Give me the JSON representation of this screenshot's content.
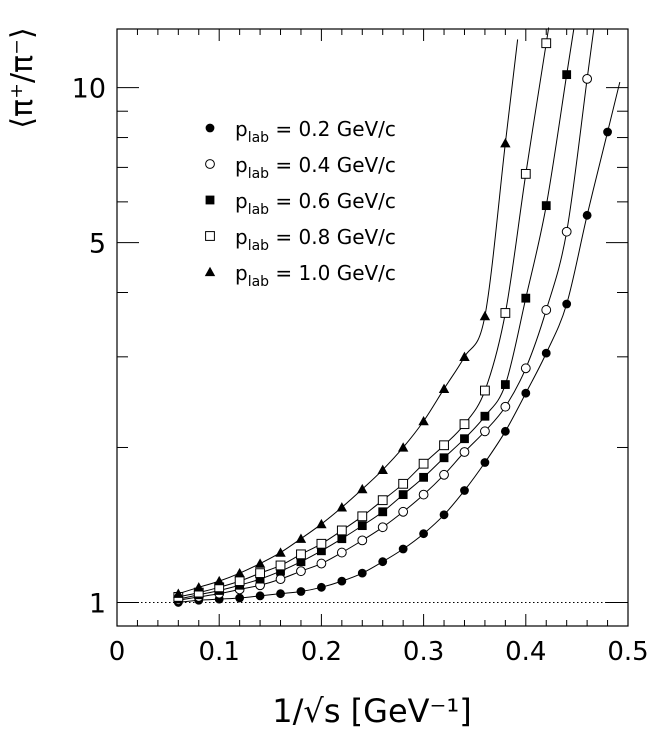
{
  "chart_data": {
    "type": "scatter",
    "title": "",
    "xlabel": "1/√s [GeV⁻¹]",
    "ylabel": "⟨π⁺/π⁻⟩",
    "xlim": [
      0,
      0.5
    ],
    "ylim": [
      0.9,
      13
    ],
    "y_scale": "log",
    "x_ticks": [
      0,
      0.1,
      0.2,
      0.3,
      0.4,
      0.5
    ],
    "x_tick_labels": [
      "0",
      "0.1",
      "0.2",
      "0.3",
      "0.4",
      "0.5"
    ],
    "y_ticks": [
      1,
      5,
      10
    ],
    "y_tick_labels": [
      "1",
      "5",
      "10"
    ],
    "reference_line": {
      "y": 1,
      "style": "dotted"
    },
    "grid": false,
    "legend_position": "top-left",
    "series": [
      {
        "name": "p_lab = 0.2 GeV/c",
        "legend_main": "p",
        "legend_sub": "lab",
        "legend_rest": " = 0.2 GeV/c",
        "marker": "filled-circle",
        "x": [
          0.06,
          0.08,
          0.1,
          0.12,
          0.14,
          0.16,
          0.18,
          0.2,
          0.22,
          0.24,
          0.26,
          0.28,
          0.3,
          0.32,
          0.34,
          0.36,
          0.38,
          0.4,
          0.42,
          0.44,
          0.46,
          0.48
        ],
        "y": [
          1.0,
          1.01,
          1.015,
          1.02,
          1.03,
          1.04,
          1.05,
          1.07,
          1.1,
          1.14,
          1.2,
          1.27,
          1.36,
          1.48,
          1.65,
          1.87,
          2.15,
          2.55,
          3.05,
          3.8,
          5.65,
          8.2
        ]
      },
      {
        "name": "p_lab = 0.4 GeV/c",
        "legend_main": "p",
        "legend_sub": "lab",
        "legend_rest": " = 0.4 GeV/c",
        "marker": "open-circle",
        "x": [
          0.06,
          0.08,
          0.1,
          0.12,
          0.14,
          0.16,
          0.18,
          0.2,
          0.22,
          0.24,
          0.26,
          0.28,
          0.3,
          0.32,
          0.34,
          0.36,
          0.38,
          0.4,
          0.42,
          0.44,
          0.46
        ],
        "y": [
          1.01,
          1.025,
          1.04,
          1.06,
          1.08,
          1.11,
          1.15,
          1.19,
          1.25,
          1.32,
          1.4,
          1.5,
          1.62,
          1.77,
          1.96,
          2.15,
          2.4,
          2.85,
          3.7,
          5.25,
          10.4
        ]
      },
      {
        "name": "p_lab = 0.6 GeV/c",
        "legend_main": "p",
        "legend_sub": "lab",
        "legend_rest": " = 0.6 GeV/c",
        "marker": "filled-square",
        "x": [
          0.06,
          0.08,
          0.1,
          0.12,
          0.14,
          0.16,
          0.18,
          0.2,
          0.22,
          0.24,
          0.26,
          0.28,
          0.3,
          0.32,
          0.34,
          0.36,
          0.38,
          0.4,
          0.42,
          0.44
        ],
        "y": [
          1.015,
          1.035,
          1.055,
          1.08,
          1.11,
          1.15,
          1.2,
          1.26,
          1.33,
          1.41,
          1.5,
          1.62,
          1.75,
          1.91,
          2.08,
          2.3,
          2.65,
          3.9,
          5.9,
          10.6
        ]
      },
      {
        "name": "p_lab = 0.8 GeV/c",
        "legend_main": "p",
        "legend_sub": "lab",
        "legend_rest": " = 0.8 GeV/c",
        "marker": "open-square",
        "x": [
          0.06,
          0.08,
          0.1,
          0.12,
          0.14,
          0.16,
          0.18,
          0.2,
          0.22,
          0.24,
          0.26,
          0.28,
          0.3,
          0.32,
          0.34,
          0.36,
          0.38,
          0.4,
          0.42
        ],
        "y": [
          1.025,
          1.045,
          1.07,
          1.1,
          1.14,
          1.18,
          1.24,
          1.3,
          1.38,
          1.47,
          1.58,
          1.7,
          1.86,
          2.02,
          2.22,
          2.58,
          3.65,
          6.8,
          12.2
        ]
      },
      {
        "name": "p_lab = 1.0 GeV/c",
        "legend_main": "p",
        "legend_sub": "lab",
        "legend_rest": " = 1.0 GeV/c",
        "marker": "filled-triangle",
        "x": [
          0.06,
          0.08,
          0.1,
          0.12,
          0.14,
          0.16,
          0.18,
          0.2,
          0.22,
          0.24,
          0.26,
          0.28,
          0.3,
          0.32,
          0.34,
          0.36,
          0.38
        ],
        "y": [
          1.04,
          1.07,
          1.1,
          1.14,
          1.19,
          1.25,
          1.33,
          1.42,
          1.53,
          1.66,
          1.81,
          2.0,
          2.25,
          2.6,
          3.0,
          3.6,
          7.8
        ]
      }
    ]
  }
}
